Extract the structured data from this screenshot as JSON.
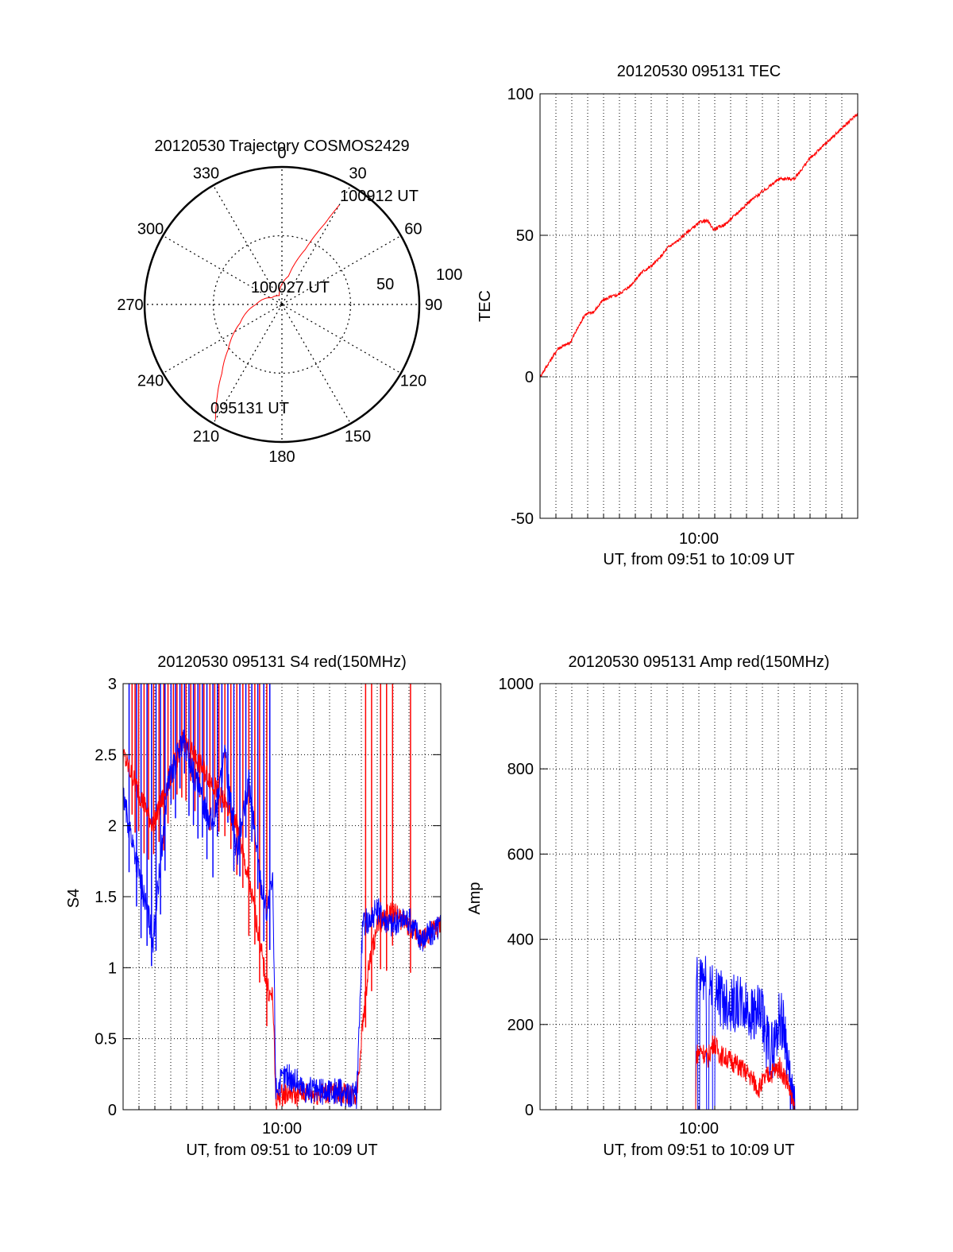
{
  "colors": {
    "red": "#ff0000",
    "blue": "#0000ff",
    "axis": "#000000",
    "grid": "#000000"
  },
  "chart_data": [
    {
      "id": "trajectory",
      "type": "polar",
      "title": "20120530 Trajectory COSMOS2429",
      "azimuth_labels": [
        "0",
        "30",
        "60",
        "90",
        "120",
        "150",
        "180",
        "210",
        "240",
        "270",
        "300",
        "330"
      ],
      "radial_labels": [
        "50",
        "100"
      ],
      "radial_range": [
        0,
        90
      ],
      "grid": true,
      "track_color": "red",
      "track": [
        {
          "az": 210,
          "el": 3
        },
        {
          "az": 215,
          "el": 16
        },
        {
          "az": 221,
          "el": 30
        },
        {
          "az": 230,
          "el": 44
        },
        {
          "az": 246,
          "el": 60
        },
        {
          "az": 270,
          "el": 73
        },
        {
          "az": 303,
          "el": 82
        },
        {
          "az": 343,
          "el": 84
        },
        {
          "az": 13,
          "el": 71
        },
        {
          "az": 23,
          "el": 51
        },
        {
          "az": 28,
          "el": 30
        },
        {
          "az": 30,
          "el": 15
        }
      ],
      "annotations": [
        {
          "text": "095131 UT",
          "az": 210,
          "el": 3
        },
        {
          "text": "100027 UT",
          "az": 0,
          "el": 90
        },
        {
          "text": "100912 UT",
          "az": 30,
          "el": 15
        }
      ]
    },
    {
      "id": "tec",
      "type": "line",
      "title": "20120530 095131 TEC",
      "xlabel": "UT, from 09:51 to 10:09 UT",
      "ylabel": "TEC",
      "xlim": [
        0,
        1061
      ],
      "ylim": [
        -50,
        100
      ],
      "yticks": [
        -50,
        0,
        50,
        100
      ],
      "xticks": [
        {
          "x": 509,
          "label": "10:00"
        }
      ],
      "grid": true,
      "series": [
        {
          "color": "red",
          "noise": 0.6,
          "x": [
            0,
            30,
            60,
            100,
            130,
            150,
            180,
            210,
            230,
            260,
            300,
            340,
            370,
            400,
            430,
            460,
            490,
            540,
            560,
            580,
            620,
            650,
            700,
            750,
            800,
            850,
            900,
            950,
            1000,
            1061
          ],
          "y": [
            0,
            5,
            10,
            12,
            18,
            22,
            23,
            27,
            28,
            29,
            32,
            37,
            39,
            42,
            46,
            48,
            51,
            55,
            55,
            52,
            54,
            57,
            62,
            66,
            70,
            70,
            77,
            82,
            87,
            93
          ]
        }
      ]
    },
    {
      "id": "s4",
      "type": "line",
      "title": "20120530 095131 S4 red(150MHz)",
      "xlabel": "UT, from 09:51 to 10:09 UT",
      "ylabel": "S4",
      "xlim": [
        0,
        1061
      ],
      "ylim": [
        0,
        3
      ],
      "yticks": [
        0,
        0.5,
        1,
        1.5,
        2,
        2.5,
        3
      ],
      "ytick_labels": [
        "0",
        "0.5",
        "1",
        "1.5",
        "2",
        "2.5",
        "3"
      ],
      "xticks": [
        {
          "x": 509,
          "label": "10:00"
        }
      ],
      "grid": true,
      "series": [
        {
          "color": "red",
          "noise": 0.08,
          "spikes": [
            30,
            40,
            52,
            70,
            85,
            102,
            120,
            136,
            150,
            168,
            180,
            196,
            210,
            226,
            240,
            256,
            270,
            290,
            306,
            320,
            340,
            360,
            380,
            400,
            420,
            440,
            456,
            480,
            810,
            830,
            860,
            880,
            900,
            960
          ],
          "x": [
            0,
            100,
            200,
            300,
            380,
            440,
            470,
            490,
            500,
            510,
            520,
            560,
            580,
            600,
            650,
            700,
            780,
            800,
            820,
            850,
            900,
            950,
            1000,
            1061
          ],
          "y": [
            2.5,
            2.0,
            2.6,
            2.3,
            2.0,
            1.4,
            1.0,
            0.8,
            0.8,
            0.05,
            0.1,
            0.12,
            0.1,
            0.12,
            0.11,
            0.12,
            0.1,
            0.6,
            1.0,
            1.3,
            1.4,
            1.3,
            1.2,
            1.3
          ]
        },
        {
          "color": "blue",
          "noise": 0.1,
          "spikes": [
            20,
            45,
            60,
            80,
            95,
            110,
            125,
            140,
            160,
            175,
            190,
            205,
            220,
            235,
            250,
            265,
            280,
            300,
            315,
            330,
            350,
            370,
            390,
            410,
            430,
            450,
            470,
            490
          ],
          "x": [
            0,
            60,
            100,
            150,
            200,
            260,
            300,
            340,
            380,
            420,
            460,
            480,
            500,
            510,
            530,
            545,
            560,
            580,
            600,
            650,
            700,
            780,
            800,
            850,
            900,
            950,
            1000,
            1061
          ],
          "y": [
            2.2,
            1.6,
            1.2,
            2.3,
            2.6,
            2.2,
            2.0,
            2.5,
            1.8,
            2.3,
            1.6,
            1.4,
            1.6,
            0.15,
            0.2,
            0.25,
            0.22,
            0.2,
            0.15,
            0.12,
            0.13,
            0.1,
            1.3,
            1.4,
            1.3,
            1.35,
            1.2,
            1.3
          ]
        }
      ]
    },
    {
      "id": "amp",
      "type": "line",
      "title": "20120530 095131 Amp red(150MHz)",
      "xlabel": "UT, from 09:51 to 10:09 UT",
      "ylabel": "Amp",
      "xlim": [
        0,
        1061
      ],
      "ylim": [
        0,
        1000
      ],
      "yticks": [
        0,
        200,
        400,
        600,
        800,
        1000
      ],
      "xticks": [
        {
          "x": 509,
          "label": "10:00"
        }
      ],
      "grid": true,
      "series": [
        {
          "color": "red",
          "noise": 25,
          "x": [
            0,
            520,
            522,
            540,
            560,
            580,
            600,
            650,
            700,
            730,
            760,
            800,
            830,
            840,
            850,
            1061
          ],
          "y": [
            0,
            0,
            130,
            140,
            120,
            160,
            130,
            110,
            80,
            50,
            80,
            100,
            60,
            20,
            0,
            0
          ]
        },
        {
          "color": "blue",
          "noise": 70,
          "dips": [
            530,
            560,
            580
          ],
          "x": [
            0,
            520,
            522,
            540,
            560,
            580,
            600,
            650,
            700,
            740,
            760,
            780,
            800,
            820,
            830,
            840,
            850,
            1061
          ],
          "y": [
            0,
            0,
            300,
            320,
            280,
            330,
            260,
            250,
            230,
            220,
            150,
            140,
            220,
            180,
            80,
            20,
            0,
            0
          ]
        }
      ]
    }
  ]
}
